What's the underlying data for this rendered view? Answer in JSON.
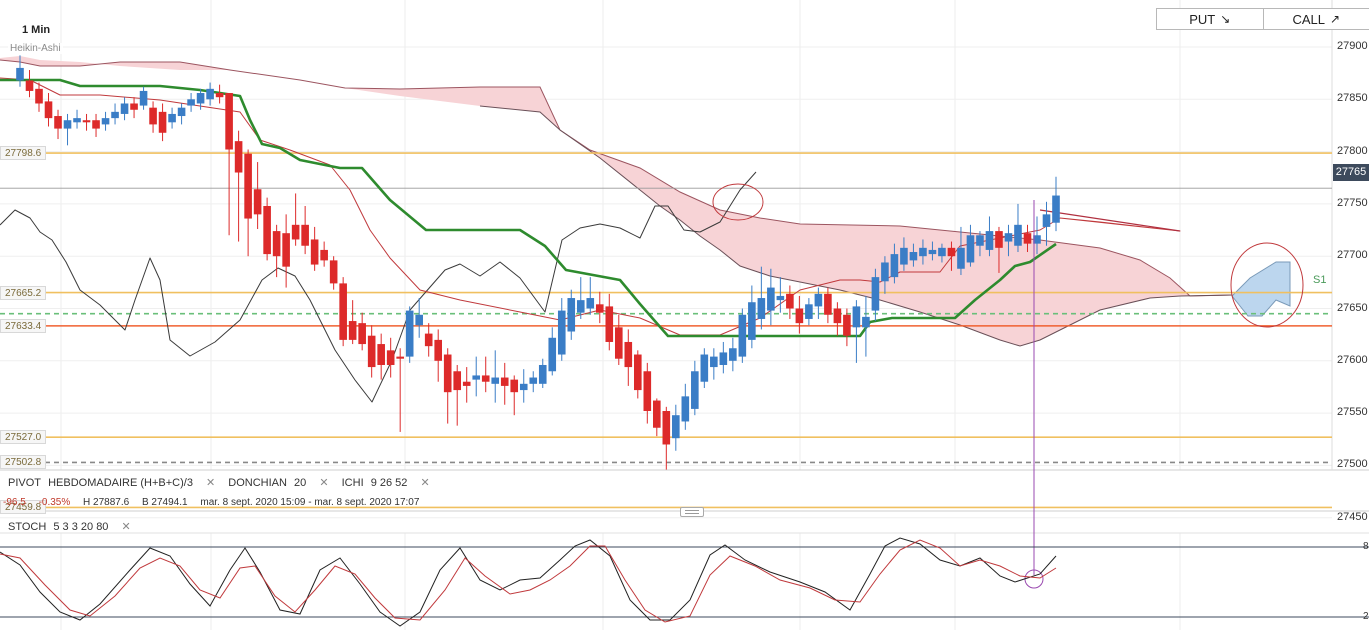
{
  "timeframe": "1 Min",
  "chart_style": "Heikin-Ashi",
  "buttons": {
    "put": "PUT",
    "call": "CALL",
    "put_icon": "arrow-down-right-icon",
    "call_icon": "arrow-up-right-icon"
  },
  "colors": {
    "bull": "#3a7dc6",
    "bear": "#dd2a2a",
    "cloud": "#f7d3d6",
    "kijun": "#2e8b2e",
    "level": "#f0c060",
    "pivot": "#f06030"
  },
  "price_tag": "27765",
  "s1_label": "S1",
  "level_labels": [
    {
      "text": "27798.6",
      "price": 27798.6
    },
    {
      "text": "27665.2",
      "price": 27665.2
    },
    {
      "text": "27633.4",
      "price": 27633.4
    },
    {
      "text": "27527.0",
      "price": 27527.0
    },
    {
      "text": "27502.8",
      "price": 27502.8
    },
    {
      "text": "27459.8",
      "price": 27459.8
    }
  ],
  "indicators": {
    "pivot": {
      "name": "PIVOT",
      "params": "HEBDOMADAIRE  (H+B+C)/3"
    },
    "donchian": {
      "name": "DONCHIAN",
      "params": "20"
    },
    "ichi": {
      "name": "ICHI",
      "params": "9  26  52"
    },
    "stoch": {
      "name": "STOCH",
      "params": "5  3  3  20  80"
    }
  },
  "ohlc": {
    "change": "-96.5",
    "change_pct": "-0.35%",
    "high": "H 27887.6",
    "low": "B 27494.1",
    "range": "mar. 8 sept. 2020 15:09 - mar. 8 sept. 2020 17:07"
  },
  "stoch_refs": [
    "8",
    "2"
  ],
  "chart_data": {
    "type": "candlestick",
    "title": "",
    "ylim": [
      27425,
      27925
    ],
    "y_ticks": [
      27900,
      27850,
      27800,
      27750,
      27700,
      27650,
      27600,
      27550,
      27500,
      27450
    ],
    "stoch_levels": [
      80,
      20
    ],
    "candles": [
      {
        "o": 27868,
        "c": 27880,
        "h": 27892,
        "l": 27862
      },
      {
        "o": 27868,
        "c": 27858,
        "h": 27878,
        "l": 27852
      },
      {
        "o": 27860,
        "c": 27846,
        "h": 27866,
        "l": 27838
      },
      {
        "o": 27848,
        "c": 27832,
        "h": 27856,
        "l": 27824
      },
      {
        "o": 27834,
        "c": 27822,
        "h": 27840,
        "l": 27812
      },
      {
        "o": 27822,
        "c": 27830,
        "h": 27836,
        "l": 27806
      },
      {
        "o": 27828,
        "c": 27832,
        "h": 27840,
        "l": 27822
      },
      {
        "o": 27830,
        "c": 27828,
        "h": 27836,
        "l": 27820
      },
      {
        "o": 27830,
        "c": 27822,
        "h": 27836,
        "l": 27814
      },
      {
        "o": 27826,
        "c": 27832,
        "h": 27838,
        "l": 27820
      },
      {
        "o": 27832,
        "c": 27838,
        "h": 27846,
        "l": 27826
      },
      {
        "o": 27836,
        "c": 27846,
        "h": 27852,
        "l": 27830
      },
      {
        "o": 27846,
        "c": 27840,
        "h": 27852,
        "l": 27832
      },
      {
        "o": 27844,
        "c": 27858,
        "h": 27862,
        "l": 27840
      },
      {
        "o": 27842,
        "c": 27826,
        "h": 27848,
        "l": 27818
      },
      {
        "o": 27838,
        "c": 27818,
        "h": 27846,
        "l": 27810
      },
      {
        "o": 27828,
        "c": 27836,
        "h": 27842,
        "l": 27822
      },
      {
        "o": 27834,
        "c": 27842,
        "h": 27846,
        "l": 27826
      },
      {
        "o": 27844,
        "c": 27850,
        "h": 27856,
        "l": 27838
      },
      {
        "o": 27846,
        "c": 27856,
        "h": 27860,
        "l": 27840
      },
      {
        "o": 27850,
        "c": 27860,
        "h": 27866,
        "l": 27844
      },
      {
        "o": 27856,
        "c": 27852,
        "h": 27864,
        "l": 27846
      },
      {
        "o": 27856,
        "c": 27802,
        "h": 27856,
        "l": 27720
      },
      {
        "o": 27810,
        "c": 27780,
        "h": 27820,
        "l": 27714
      },
      {
        "o": 27798,
        "c": 27736,
        "h": 27802,
        "l": 27700
      },
      {
        "o": 27764,
        "c": 27740,
        "h": 27790,
        "l": 27726
      },
      {
        "o": 27748,
        "c": 27702,
        "h": 27756,
        "l": 27696
      },
      {
        "o": 27724,
        "c": 27700,
        "h": 27730,
        "l": 27680
      },
      {
        "o": 27722,
        "c": 27690,
        "h": 27740,
        "l": 27670
      },
      {
        "o": 27730,
        "c": 27716,
        "h": 27760,
        "l": 27710
      },
      {
        "o": 27730,
        "c": 27710,
        "h": 27748,
        "l": 27702
      },
      {
        "o": 27716,
        "c": 27692,
        "h": 27728,
        "l": 27686
      },
      {
        "o": 27706,
        "c": 27696,
        "h": 27714,
        "l": 27690
      },
      {
        "o": 27696,
        "c": 27674,
        "h": 27700,
        "l": 27668
      },
      {
        "o": 27674,
        "c": 27620,
        "h": 27680,
        "l": 27614
      },
      {
        "o": 27638,
        "c": 27620,
        "h": 27658,
        "l": 27616
      },
      {
        "o": 27636,
        "c": 27616,
        "h": 27646,
        "l": 27610
      },
      {
        "o": 27624,
        "c": 27594,
        "h": 27634,
        "l": 27584
      },
      {
        "o": 27616,
        "c": 27596,
        "h": 27626,
        "l": 27582
      },
      {
        "o": 27610,
        "c": 27596,
        "h": 27622,
        "l": 27584
      },
      {
        "o": 27604,
        "c": 27602,
        "h": 27612,
        "l": 27532
      },
      {
        "o": 27604,
        "c": 27648,
        "h": 27652,
        "l": 27598
      },
      {
        "o": 27634,
        "c": 27644,
        "h": 27660,
        "l": 27622
      },
      {
        "o": 27626,
        "c": 27614,
        "h": 27636,
        "l": 27604
      },
      {
        "o": 27620,
        "c": 27600,
        "h": 27630,
        "l": 27580
      },
      {
        "o": 27606,
        "c": 27570,
        "h": 27612,
        "l": 27540
      },
      {
        "o": 27590,
        "c": 27572,
        "h": 27596,
        "l": 27538
      },
      {
        "o": 27580,
        "c": 27576,
        "h": 27594,
        "l": 27560
      },
      {
        "o": 27582,
        "c": 27586,
        "h": 27604,
        "l": 27566
      },
      {
        "o": 27586,
        "c": 27580,
        "h": 27604,
        "l": 27570
      },
      {
        "o": 27578,
        "c": 27584,
        "h": 27610,
        "l": 27560
      },
      {
        "o": 27584,
        "c": 27576,
        "h": 27598,
        "l": 27558
      },
      {
        "o": 27582,
        "c": 27570,
        "h": 27586,
        "l": 27548
      },
      {
        "o": 27572,
        "c": 27578,
        "h": 27592,
        "l": 27560
      },
      {
        "o": 27578,
        "c": 27584,
        "h": 27590,
        "l": 27570
      },
      {
        "o": 27578,
        "c": 27596,
        "h": 27602,
        "l": 27574
      },
      {
        "o": 27590,
        "c": 27622,
        "h": 27632,
        "l": 27586
      },
      {
        "o": 27606,
        "c": 27648,
        "h": 27660,
        "l": 27600
      },
      {
        "o": 27628,
        "c": 27660,
        "h": 27668,
        "l": 27620
      },
      {
        "o": 27646,
        "c": 27658,
        "h": 27680,
        "l": 27640
      },
      {
        "o": 27650,
        "c": 27660,
        "h": 27680,
        "l": 27644
      },
      {
        "o": 27654,
        "c": 27646,
        "h": 27666,
        "l": 27636
      },
      {
        "o": 27652,
        "c": 27618,
        "h": 27664,
        "l": 27610
      },
      {
        "o": 27632,
        "c": 27602,
        "h": 27644,
        "l": 27596
      },
      {
        "o": 27618,
        "c": 27594,
        "h": 27630,
        "l": 27576
      },
      {
        "o": 27606,
        "c": 27572,
        "h": 27610,
        "l": 27564
      },
      {
        "o": 27590,
        "c": 27552,
        "h": 27598,
        "l": 27540
      },
      {
        "o": 27562,
        "c": 27536,
        "h": 27564,
        "l": 27528
      },
      {
        "o": 27552,
        "c": 27520,
        "h": 27556,
        "l": 27496
      },
      {
        "o": 27526,
        "c": 27548,
        "h": 27558,
        "l": 27514
      },
      {
        "o": 27542,
        "c": 27566,
        "h": 27578,
        "l": 27534
      },
      {
        "o": 27554,
        "c": 27590,
        "h": 27600,
        "l": 27548
      },
      {
        "o": 27580,
        "c": 27606,
        "h": 27612,
        "l": 27574
      },
      {
        "o": 27594,
        "c": 27604,
        "h": 27612,
        "l": 27582
      },
      {
        "o": 27596,
        "c": 27608,
        "h": 27618,
        "l": 27588
      },
      {
        "o": 27600,
        "c": 27612,
        "h": 27622,
        "l": 27590
      },
      {
        "o": 27604,
        "c": 27644,
        "h": 27650,
        "l": 27598
      },
      {
        "o": 27620,
        "c": 27656,
        "h": 27672,
        "l": 27612
      },
      {
        "o": 27640,
        "c": 27660,
        "h": 27690,
        "l": 27630
      },
      {
        "o": 27648,
        "c": 27670,
        "h": 27688,
        "l": 27634
      },
      {
        "o": 27658,
        "c": 27662,
        "h": 27680,
        "l": 27646
      },
      {
        "o": 27664,
        "c": 27650,
        "h": 27672,
        "l": 27640
      },
      {
        "o": 27650,
        "c": 27636,
        "h": 27662,
        "l": 27626
      },
      {
        "o": 27640,
        "c": 27654,
        "h": 27660,
        "l": 27634
      },
      {
        "o": 27652,
        "c": 27664,
        "h": 27670,
        "l": 27640
      },
      {
        "o": 27664,
        "c": 27644,
        "h": 27670,
        "l": 27636
      },
      {
        "o": 27650,
        "c": 27636,
        "h": 27656,
        "l": 27624
      },
      {
        "o": 27644,
        "c": 27624,
        "h": 27650,
        "l": 27614
      },
      {
        "o": 27632,
        "c": 27652,
        "h": 27658,
        "l": 27598
      },
      {
        "o": 27632,
        "c": 27642,
        "h": 27662,
        "l": 27604
      },
      {
        "o": 27648,
        "c": 27680,
        "h": 27688,
        "l": 27638
      },
      {
        "o": 27676,
        "c": 27694,
        "h": 27700,
        "l": 27664
      },
      {
        "o": 27680,
        "c": 27702,
        "h": 27712,
        "l": 27674
      },
      {
        "o": 27692,
        "c": 27708,
        "h": 27718,
        "l": 27686
      },
      {
        "o": 27696,
        "c": 27704,
        "h": 27712,
        "l": 27690
      },
      {
        "o": 27700,
        "c": 27708,
        "h": 27716,
        "l": 27692
      },
      {
        "o": 27702,
        "c": 27706,
        "h": 27714,
        "l": 27696
      },
      {
        "o": 27700,
        "c": 27708,
        "h": 27712,
        "l": 27694
      },
      {
        "o": 27708,
        "c": 27700,
        "h": 27714,
        "l": 27686
      },
      {
        "o": 27688,
        "c": 27708,
        "h": 27728,
        "l": 27682
      },
      {
        "o": 27694,
        "c": 27720,
        "h": 27730,
        "l": 27690
      },
      {
        "o": 27710,
        "c": 27720,
        "h": 27724,
        "l": 27700
      },
      {
        "o": 27706,
        "c": 27724,
        "h": 27738,
        "l": 27700
      },
      {
        "o": 27724,
        "c": 27708,
        "h": 27728,
        "l": 27684
      },
      {
        "o": 27714,
        "c": 27722,
        "h": 27730,
        "l": 27700
      },
      {
        "o": 27710,
        "c": 27730,
        "h": 27750,
        "l": 27704
      },
      {
        "o": 27722,
        "c": 27712,
        "h": 27730,
        "l": 27704
      },
      {
        "o": 27712,
        "c": 27720,
        "h": 27738,
        "l": 27702
      },
      {
        "o": 27728,
        "c": 27740,
        "h": 27752,
        "l": 27710
      },
      {
        "o": 27732,
        "c": 27758,
        "h": 27776,
        "l": 27724
      }
    ],
    "ref_lines": [
      {
        "price": 27798.6,
        "style": "solid",
        "color": "#f0c060"
      },
      {
        "price": 27665.2,
        "style": "solid",
        "color": "#f0c060"
      },
      {
        "price": 27633.4,
        "style": "solid",
        "color": "#f06030"
      },
      {
        "price": 27527.0,
        "style": "solid",
        "color": "#f0c060"
      },
      {
        "price": 27502.8,
        "style": "dashed",
        "color": "#888888"
      },
      {
        "price": 27459.8,
        "style": "solid",
        "color": "#f0c060"
      },
      {
        "price": 27765.0,
        "style": "solid",
        "color": "#999999"
      },
      {
        "price": 27645.0,
        "style": "dashed",
        "color": "#6abf7a"
      }
    ]
  }
}
